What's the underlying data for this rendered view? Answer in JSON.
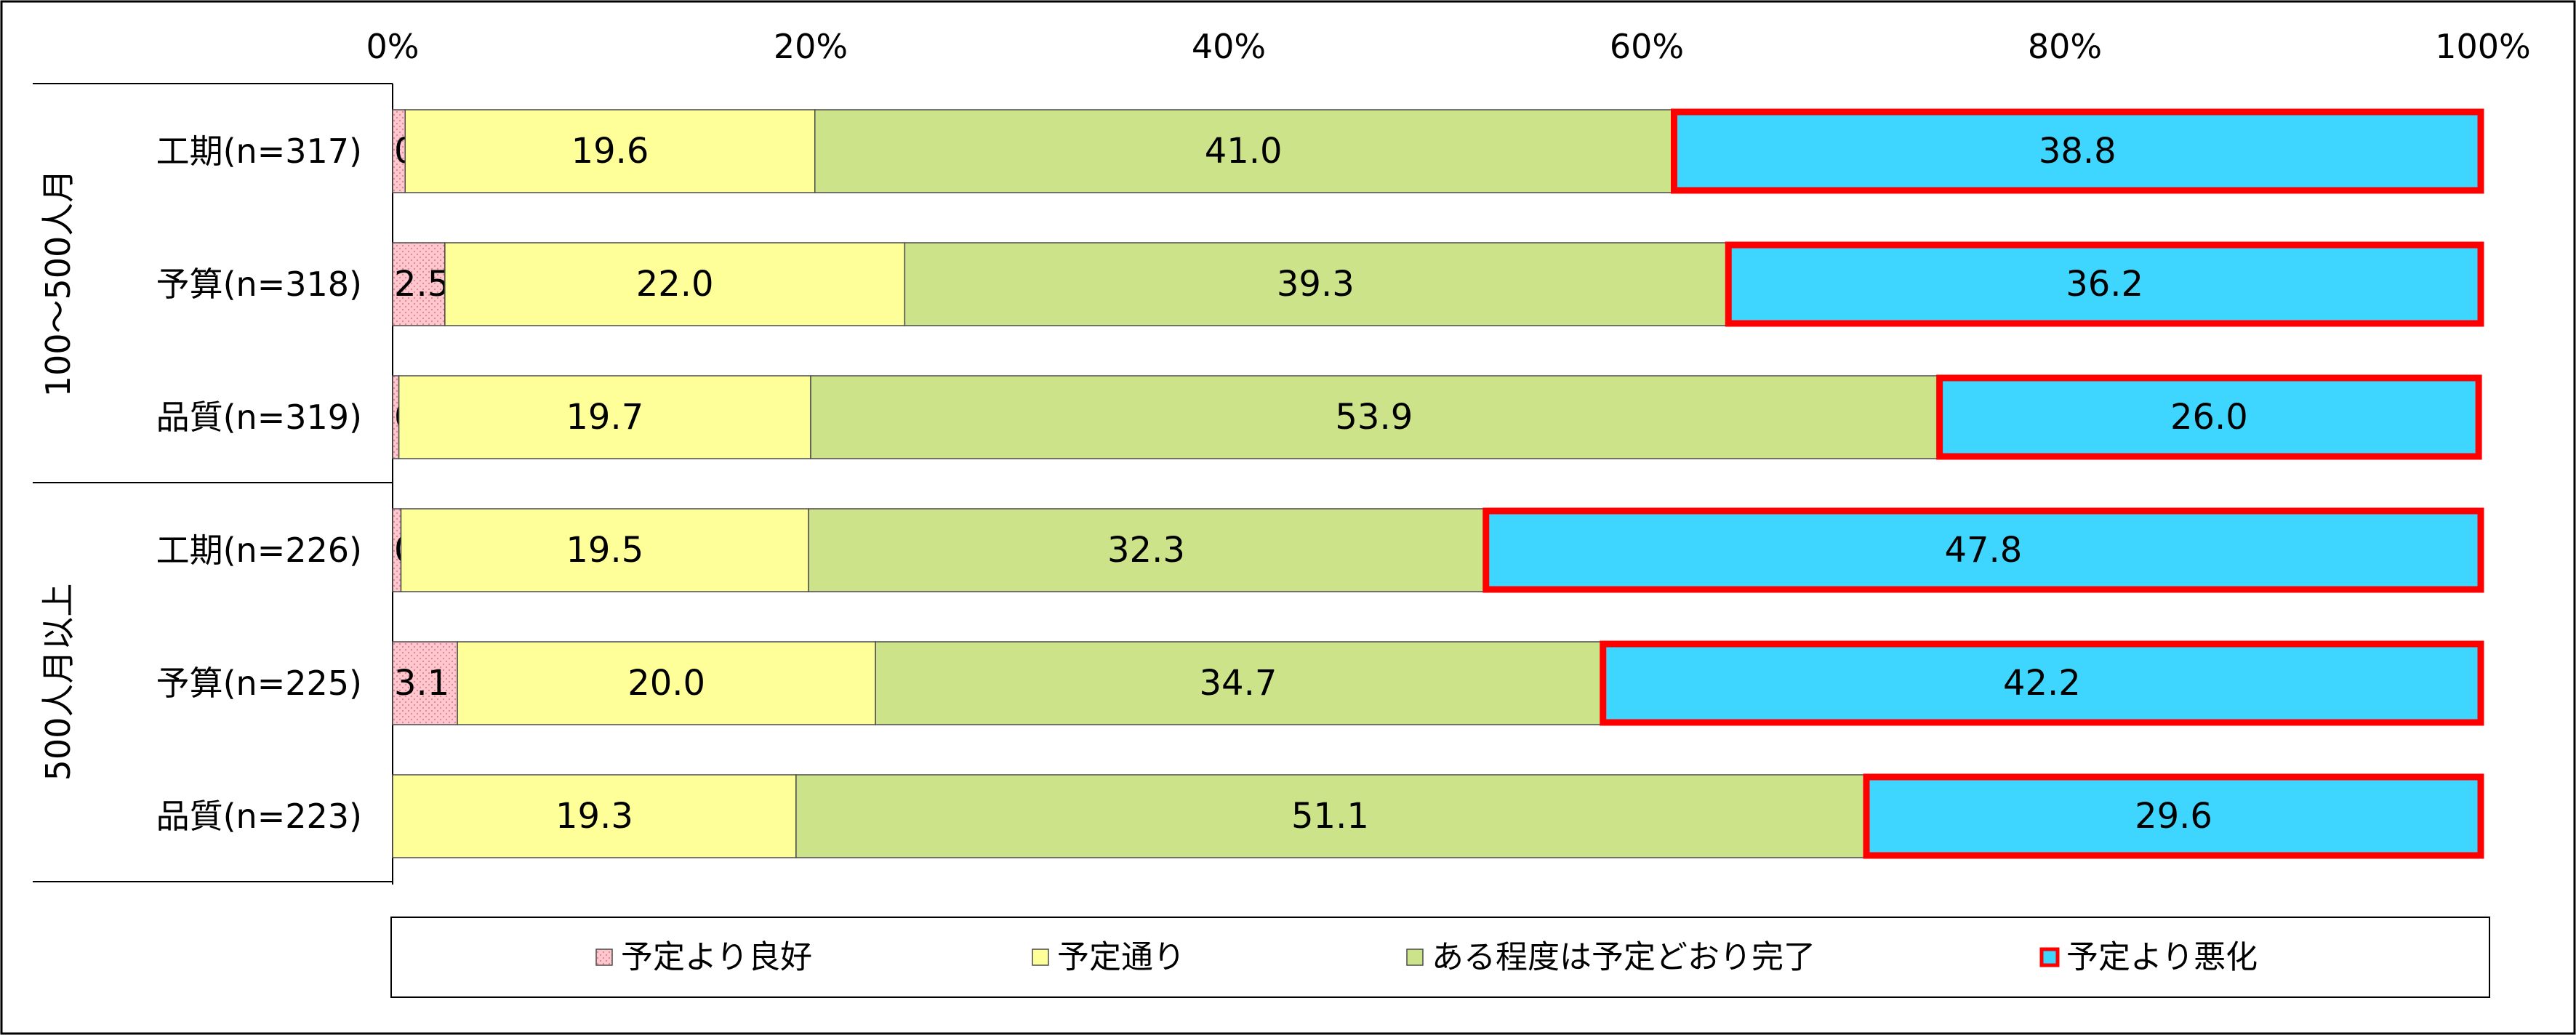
{
  "chart_data": {
    "type": "bar",
    "stacked": "percent",
    "orientation": "horizontal",
    "x_tick_labels": [
      "0%",
      "20%",
      "40%",
      "60%",
      "80%",
      "100%"
    ],
    "xlim": [
      0,
      100
    ],
    "groups": [
      {
        "label": "100～500人月",
        "rows": [
          "工期(n=317)",
          "予算(n=318)",
          "品質(n=319)"
        ]
      },
      {
        "label": "500人月以上",
        "rows": [
          "工期(n=226)",
          "予算(n=225)",
          "品質(n=223)"
        ]
      }
    ],
    "categories": [
      "工期(n=317)",
      "予算(n=318)",
      "品質(n=319)",
      "工期(n=226)",
      "予算(n=225)",
      "品質(n=223)"
    ],
    "series": [
      {
        "name": "予定より良好",
        "color": "#ffc7ce",
        "pattern": "dotted",
        "values": [
          0.6,
          2.5,
          0.3,
          0.4,
          3.1,
          0.0
        ]
      },
      {
        "name": "予定通り",
        "color": "#ffff99",
        "values": [
          19.6,
          22.0,
          19.7,
          19.5,
          20.0,
          19.3
        ]
      },
      {
        "name": "ある程度は予定どおり完了",
        "color": "#cce38a",
        "values": [
          41.0,
          39.3,
          53.9,
          32.3,
          34.7,
          51.1
        ]
      },
      {
        "name": "予定より悪化",
        "color": "#3ed5fe",
        "highlight_border": "#ff0000",
        "values": [
          38.8,
          36.2,
          26.0,
          47.8,
          42.2,
          29.6
        ]
      }
    ],
    "legend_position": "bottom",
    "grid": false
  }
}
